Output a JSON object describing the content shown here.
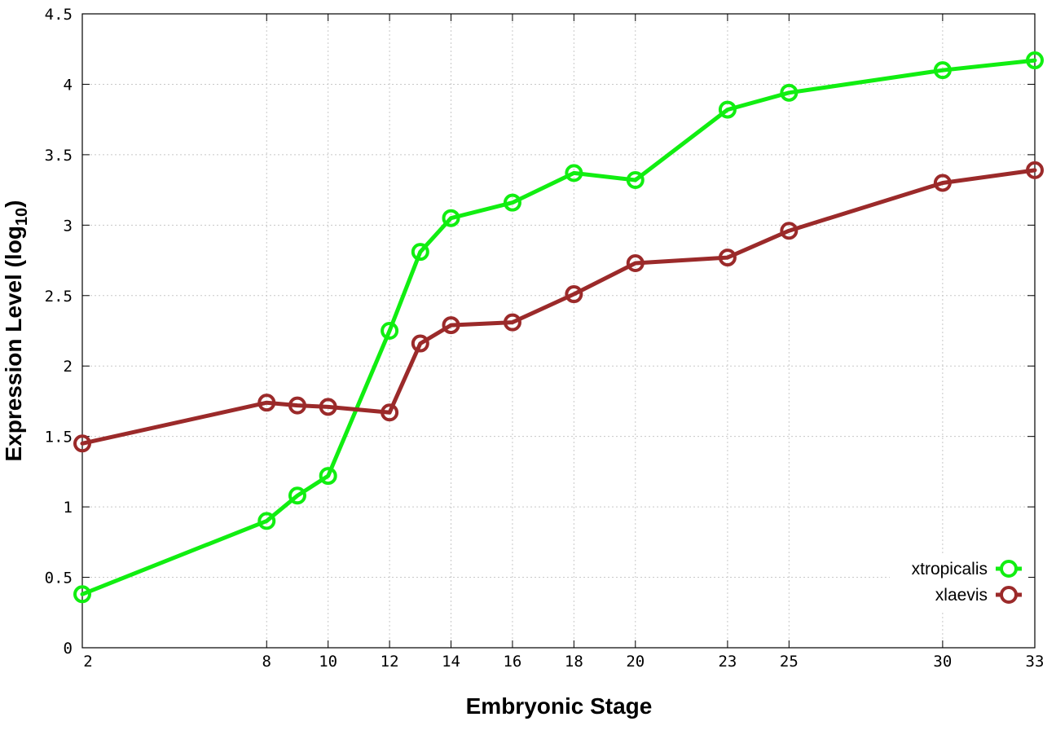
{
  "chart_data": {
    "type": "line",
    "title": "",
    "xlabel": "Embryonic Stage",
    "ylabel_main": "Expression Level (log",
    "ylabel_sub": "10",
    "ylabel_close": ")",
    "xlim": [
      2,
      33
    ],
    "ylim": [
      0,
      4.5
    ],
    "x_ticks": [
      2,
      8,
      10,
      12,
      14,
      16,
      18,
      20,
      23,
      25,
      30,
      33
    ],
    "x_tick_labels": [
      "2",
      "8",
      "10",
      "12",
      "14",
      "16",
      "18",
      "20",
      "23",
      "25",
      "30",
      "33"
    ],
    "y_ticks": [
      0,
      0.5,
      1,
      1.5,
      2,
      2.5,
      3,
      3.5,
      4,
      4.5
    ],
    "y_tick_labels": [
      "0",
      "0.5",
      "1",
      "1.5",
      "2",
      "2.5",
      "3",
      "3.5",
      "4",
      "4.5"
    ],
    "grid": true,
    "legend_position": "bottom-right",
    "x": [
      2,
      8,
      9,
      10,
      12,
      13,
      14,
      16,
      18,
      20,
      23,
      25,
      30,
      33
    ],
    "series": [
      {
        "name": "xtropicalis",
        "color": "#11ee11",
        "values": [
          0.38,
          0.9,
          1.08,
          1.22,
          2.25,
          2.81,
          3.05,
          3.16,
          3.37,
          3.32,
          3.82,
          3.94,
          4.1,
          4.17
        ]
      },
      {
        "name": "xlaevis",
        "color": "#9b2a2a",
        "values": [
          1.45,
          1.74,
          1.72,
          1.71,
          1.67,
          2.16,
          2.29,
          2.31,
          2.51,
          2.73,
          2.77,
          2.96,
          3.3,
          3.39
        ]
      }
    ]
  }
}
